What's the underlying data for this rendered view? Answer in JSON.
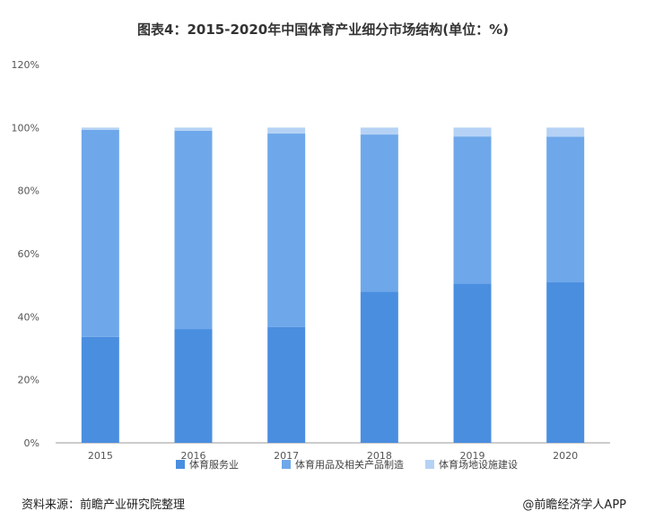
{
  "title": "图表4：2015-2020年中国体育产业细分市场结构(单位：%)",
  "footer": {
    "source": "资料来源：前瞻产业研究院整理",
    "brand": "@前瞻经济学人APP"
  },
  "colors": {
    "series": [
      "#4a8ee0",
      "#6ea8ea",
      "#b5d2f5"
    ],
    "axis": "#999999"
  },
  "chart_data": {
    "type": "bar",
    "stacked": true,
    "categories": [
      "2015",
      "2016",
      "2017",
      "2018",
      "2019",
      "2020"
    ],
    "series": [
      {
        "name": "体育服务业",
        "values": [
          33.6,
          36.1,
          36.7,
          47.9,
          50.5,
          50.9
        ]
      },
      {
        "name": "体育用品及相关产品制造",
        "values": [
          65.7,
          62.9,
          61.4,
          49.9,
          46.7,
          46.2
        ]
      },
      {
        "name": "体育场地设施建设",
        "values": [
          0.7,
          1.0,
          1.9,
          2.2,
          2.8,
          2.9
        ]
      }
    ],
    "yticks": [
      "0%",
      "20%",
      "40%",
      "60%",
      "80%",
      "100%",
      "120%"
    ],
    "ylim": [
      0,
      120
    ],
    "grid": false,
    "legend_position": "bottom"
  }
}
